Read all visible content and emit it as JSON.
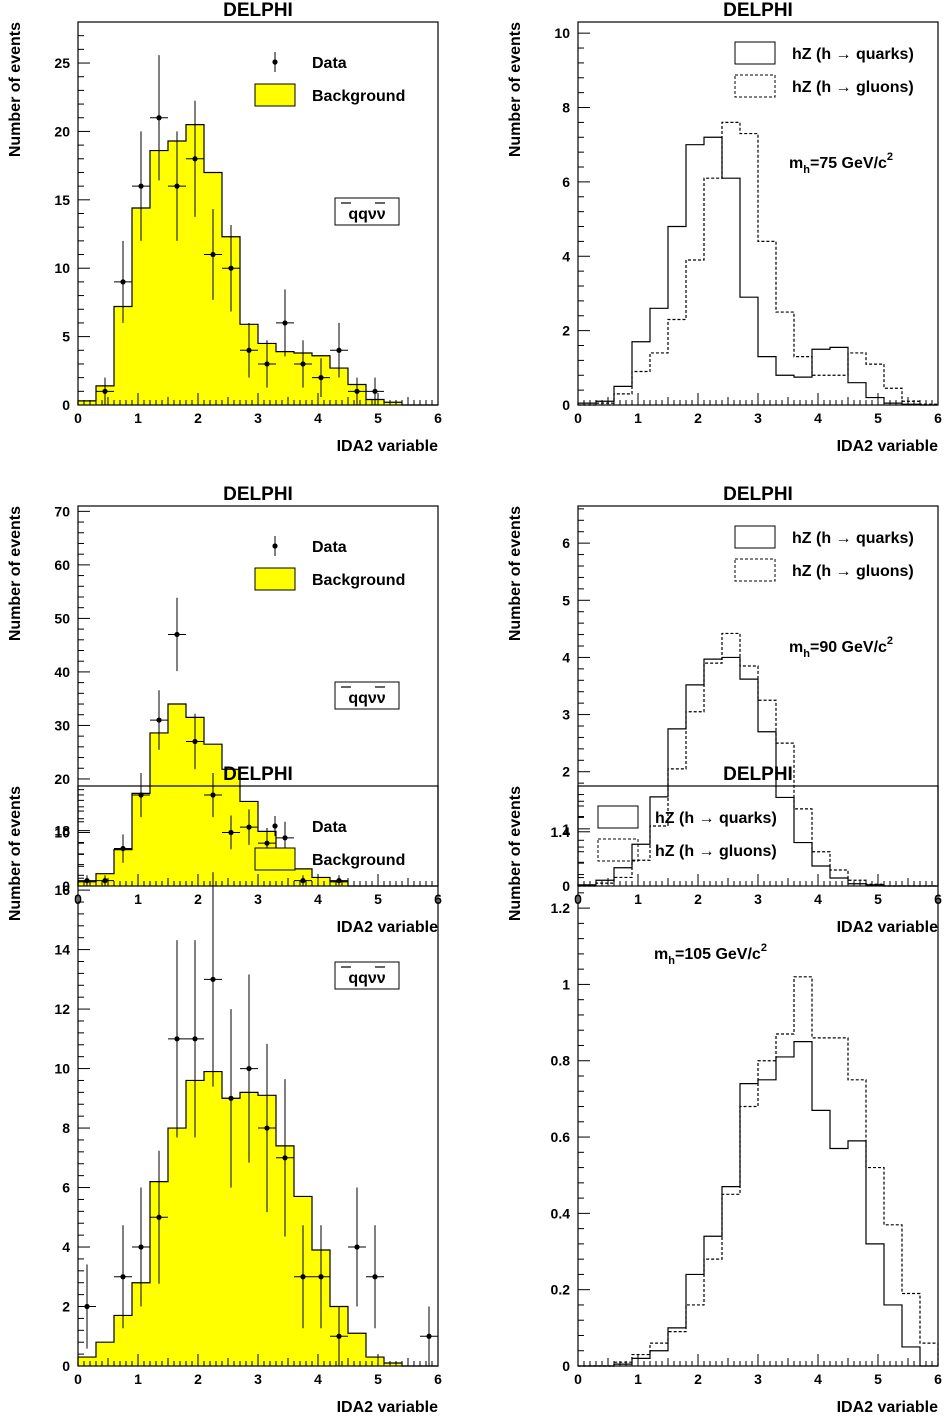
{
  "chart_data": [
    {
      "type": "histogram",
      "title": "DELPHI",
      "xlabel": "IDA2 variable",
      "ylabel": "Number of events",
      "xlim": [
        0,
        6
      ],
      "ylim": [
        0,
        28
      ],
      "xticks": [
        0,
        1,
        2,
        3,
        4,
        5,
        6
      ],
      "yticks": [
        0,
        5,
        10,
        15,
        20,
        25
      ],
      "bin_edges": [
        0,
        0.3,
        0.6,
        0.9,
        1.2,
        1.5,
        1.8,
        2.1,
        2.4,
        2.7,
        3.0,
        3.3,
        3.6,
        3.9,
        4.2,
        4.5,
        4.8,
        5.1,
        5.4,
        5.7,
        6.0
      ],
      "background": [
        0.3,
        1.4,
        7.2,
        14.4,
        18.6,
        19.3,
        20.5,
        17.0,
        12.3,
        5.9,
        4.5,
        3.9,
        3.8,
        3.6,
        2.7,
        1.5,
        0.4,
        0.2,
        0,
        0
      ],
      "data": {
        "x": [
          0.45,
          0.75,
          1.05,
          1.35,
          1.65,
          1.95,
          2.25,
          2.55,
          2.85,
          3.15,
          3.45,
          3.75,
          4.05,
          4.35,
          4.65,
          4.95
        ],
        "y": [
          1,
          9,
          16,
          21,
          16,
          18,
          11,
          10,
          4,
          3,
          6,
          3,
          2,
          4,
          1,
          1
        ]
      },
      "legend": [
        {
          "label": "Data",
          "style": "marker"
        },
        {
          "label": "Background",
          "style": "fill",
          "color": "#ffff00"
        }
      ],
      "annotation": {
        "base": "qqνν",
        "bars": "̄ ̄"
      }
    },
    {
      "type": "histogram",
      "title": "DELPHI",
      "xlabel": "IDA2 variable",
      "ylabel": "Number of events",
      "xlim": [
        0,
        6
      ],
      "ylim": [
        0,
        10.3
      ],
      "xticks": [
        0,
        1,
        2,
        3,
        4,
        5,
        6
      ],
      "yticks": [
        0,
        2,
        4,
        6,
        8,
        10
      ],
      "bin_edges": [
        0,
        0.3,
        0.6,
        0.9,
        1.2,
        1.5,
        1.8,
        2.1,
        2.4,
        2.7,
        3.0,
        3.3,
        3.6,
        3.9,
        4.2,
        4.5,
        4.8,
        5.1,
        5.4,
        5.7,
        6.0
      ],
      "series": [
        {
          "name": "hZ (h → quarks)",
          "style": "solid",
          "values": [
            0.05,
            0.1,
            0.5,
            1.7,
            2.6,
            4.8,
            7.0,
            7.2,
            6.1,
            2.9,
            1.3,
            0.8,
            0.75,
            1.5,
            1.55,
            0.6,
            0.2,
            0.05,
            0.02,
            0
          ]
        },
        {
          "name": "hZ (h → gluons)",
          "style": "dashed",
          "values": [
            0,
            0.05,
            0.3,
            0.9,
            1.4,
            2.3,
            3.9,
            6.1,
            7.6,
            7.3,
            4.4,
            2.5,
            1.3,
            0.8,
            0.8,
            1.4,
            1.1,
            0.45,
            0.1,
            0.02
          ]
        }
      ],
      "annotation": {
        "prefix": "m",
        "sub": "h",
        "mid": "=75 GeV/c",
        "sup": "2"
      }
    },
    {
      "type": "histogram",
      "title": "DELPHI",
      "xlabel": "IDA2 variable",
      "ylabel": "Number of events",
      "xlim": [
        0,
        6
      ],
      "ylim": [
        0,
        71
      ],
      "xticks": [
        0,
        1,
        2,
        3,
        4,
        5,
        6
      ],
      "yticks": [
        0,
        10,
        20,
        30,
        40,
        50,
        60,
        70
      ],
      "bin_edges": [
        0,
        0.3,
        0.6,
        0.9,
        1.2,
        1.5,
        1.8,
        2.1,
        2.4,
        2.7,
        3.0,
        3.3,
        3.6,
        3.9,
        4.2,
        4.5,
        4.8,
        5.1,
        5.4,
        5.7,
        6.0
      ],
      "background": [
        0.8,
        2.3,
        6.8,
        17.3,
        28.6,
        34.0,
        31.5,
        26.5,
        21.8,
        15.8,
        10.2,
        6.6,
        3.2,
        1.6,
        0.8,
        0,
        0,
        0,
        0,
        0
      ],
      "data": {
        "x": [
          0.15,
          0.45,
          0.75,
          1.05,
          1.35,
          1.65,
          1.95,
          2.25,
          2.55,
          2.85,
          3.15,
          3.45,
          3.75,
          4.35
        ],
        "y": [
          1,
          1,
          7,
          17,
          31,
          47,
          27,
          17,
          10,
          11,
          8,
          9,
          1,
          1
        ]
      },
      "legend": [
        {
          "label": "Data",
          "style": "marker"
        },
        {
          "label": "Background",
          "style": "fill",
          "color": "#ffff00"
        }
      ],
      "annotation": {
        "base": "qqνν",
        "bars": "̄ ̄"
      }
    },
    {
      "type": "histogram",
      "title": "DELPHI",
      "xlabel": "IDA2 variable",
      "ylabel": "Number of events",
      "xlim": [
        0,
        6
      ],
      "ylim": [
        0,
        6.65
      ],
      "xticks": [
        0,
        1,
        2,
        3,
        4,
        5,
        6
      ],
      "yticks": [
        0,
        1,
        2,
        3,
        4,
        5,
        6
      ],
      "bin_edges": [
        0,
        0.3,
        0.6,
        0.9,
        1.2,
        1.5,
        1.8,
        2.1,
        2.4,
        2.7,
        3.0,
        3.3,
        3.6,
        3.9,
        4.2,
        4.5,
        4.8,
        5.1,
        5.4,
        5.7,
        6.0
      ],
      "series": [
        {
          "name": "hZ (h → quarks)",
          "style": "solid",
          "values": [
            0.02,
            0.1,
            0.32,
            0.73,
            1.56,
            2.75,
            3.52,
            3.97,
            4.0,
            3.62,
            2.7,
            1.55,
            0.76,
            0.35,
            0.14,
            0.04,
            0.02,
            0,
            0,
            0
          ]
        },
        {
          "name": "hZ (h → gluons)",
          "style": "dashed",
          "values": [
            0,
            0.05,
            0.15,
            0.45,
            1.05,
            2.05,
            3.05,
            3.9,
            4.42,
            3.85,
            3.25,
            2.5,
            1.35,
            0.6,
            0.28,
            0.1,
            0.03,
            0,
            0,
            0
          ]
        }
      ],
      "annotation": {
        "prefix": "m",
        "sub": "h",
        "mid": "=90 GeV/c",
        "sup": "2"
      }
    },
    {
      "type": "histogram",
      "title": "DELPHI",
      "xlabel": "IDA2 variable",
      "ylabel": "Number of events",
      "xlim": [
        0,
        6
      ],
      "ylim": [
        0,
        19.5
      ],
      "xticks": [
        0,
        1,
        2,
        3,
        4,
        5,
        6
      ],
      "yticks": [
        0,
        2,
        4,
        6,
        8,
        10,
        12,
        14,
        16,
        18
      ],
      "bin_edges": [
        0,
        0.3,
        0.6,
        0.9,
        1.2,
        1.5,
        1.8,
        2.1,
        2.4,
        2.7,
        3.0,
        3.3,
        3.6,
        3.9,
        4.2,
        4.5,
        4.8,
        5.1,
        5.4,
        5.7,
        6.0
      ],
      "background": [
        0.3,
        0.8,
        1.7,
        2.8,
        6.2,
        8.0,
        9.6,
        9.9,
        9.0,
        9.2,
        9.1,
        7.4,
        5.7,
        3.9,
        2.0,
        1.1,
        0.3,
        0.1,
        0,
        0
      ],
      "data": {
        "x": [
          0.15,
          0.75,
          1.05,
          1.35,
          1.65,
          1.95,
          2.25,
          2.55,
          2.85,
          3.15,
          3.45,
          3.75,
          4.05,
          4.35,
          4.65,
          4.95,
          5.85
        ],
        "y": [
          2,
          3,
          4,
          5,
          11,
          11,
          13,
          9,
          10,
          8,
          7,
          3,
          3,
          1,
          4,
          3,
          1
        ]
      },
      "legend": [
        {
          "label": "Data",
          "style": "marker"
        },
        {
          "label": "Background",
          "style": "fill",
          "color": "#ffff00"
        }
      ],
      "annotation": {
        "base": "qqνν",
        "bars": "̄ ̄"
      }
    },
    {
      "type": "histogram",
      "title": "DELPHI",
      "xlabel": "IDA2 variable",
      "ylabel": "Number of events",
      "xlim": [
        0,
        6
      ],
      "ylim": [
        0,
        1.52
      ],
      "xticks": [
        0,
        1,
        2,
        3,
        4,
        5,
        6
      ],
      "yticks": [
        0,
        0.2,
        0.4,
        0.6,
        0.8,
        1,
        1.2,
        1.4
      ],
      "bin_edges": [
        0,
        0.3,
        0.6,
        0.9,
        1.2,
        1.5,
        1.8,
        2.1,
        2.4,
        2.7,
        3.0,
        3.3,
        3.6,
        3.9,
        4.2,
        4.5,
        4.8,
        5.1,
        5.4,
        5.7,
        6.0
      ],
      "series": [
        {
          "name": "hZ (h → quarks)",
          "style": "solid",
          "values": [
            0,
            0,
            0.005,
            0.02,
            0.04,
            0.1,
            0.24,
            0.34,
            0.47,
            0.74,
            0.75,
            0.81,
            0.85,
            0.67,
            0.57,
            0.59,
            0.32,
            0.16,
            0.05,
            0
          ]
        },
        {
          "name": "hZ (h → gluons)",
          "style": "dashed",
          "values": [
            0,
            0,
            0.01,
            0.03,
            0.06,
            0.09,
            0.16,
            0.28,
            0.45,
            0.68,
            0.8,
            0.87,
            1.02,
            0.86,
            0.86,
            0.75,
            0.52,
            0.37,
            0.19,
            0.06
          ]
        }
      ],
      "annotation": {
        "prefix": "m",
        "sub": "h",
        "mid": "=105 GeV/c",
        "sup": "2"
      }
    }
  ]
}
